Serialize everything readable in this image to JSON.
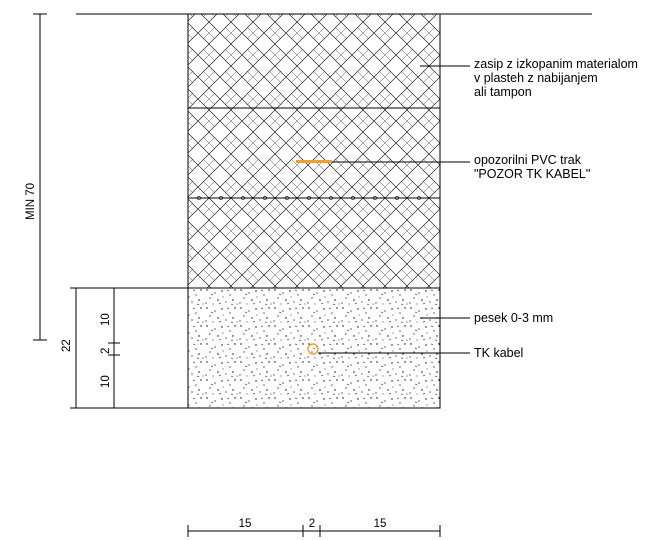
{
  "callouts": {
    "backfill": [
      "zasip z izkopanim materialom",
      "v plasteh z nabijanjem",
      "ali tampon"
    ],
    "warning_tape": [
      "opozorilni PVC trak",
      "\"POZOR TK KABEL\""
    ],
    "sand": "pesek 0-3 mm",
    "cable": "TK kabel"
  },
  "dimensions": {
    "min_depth": "MIN 70",
    "bed_total": "22",
    "above_cable": "10",
    "cable": "2",
    "below_cable": "10",
    "width_left": "15",
    "width_cable": "2",
    "width_right": "15"
  },
  "colors": {
    "tape": "#f0a030",
    "cable": "#f0a030",
    "line": "#000000"
  }
}
